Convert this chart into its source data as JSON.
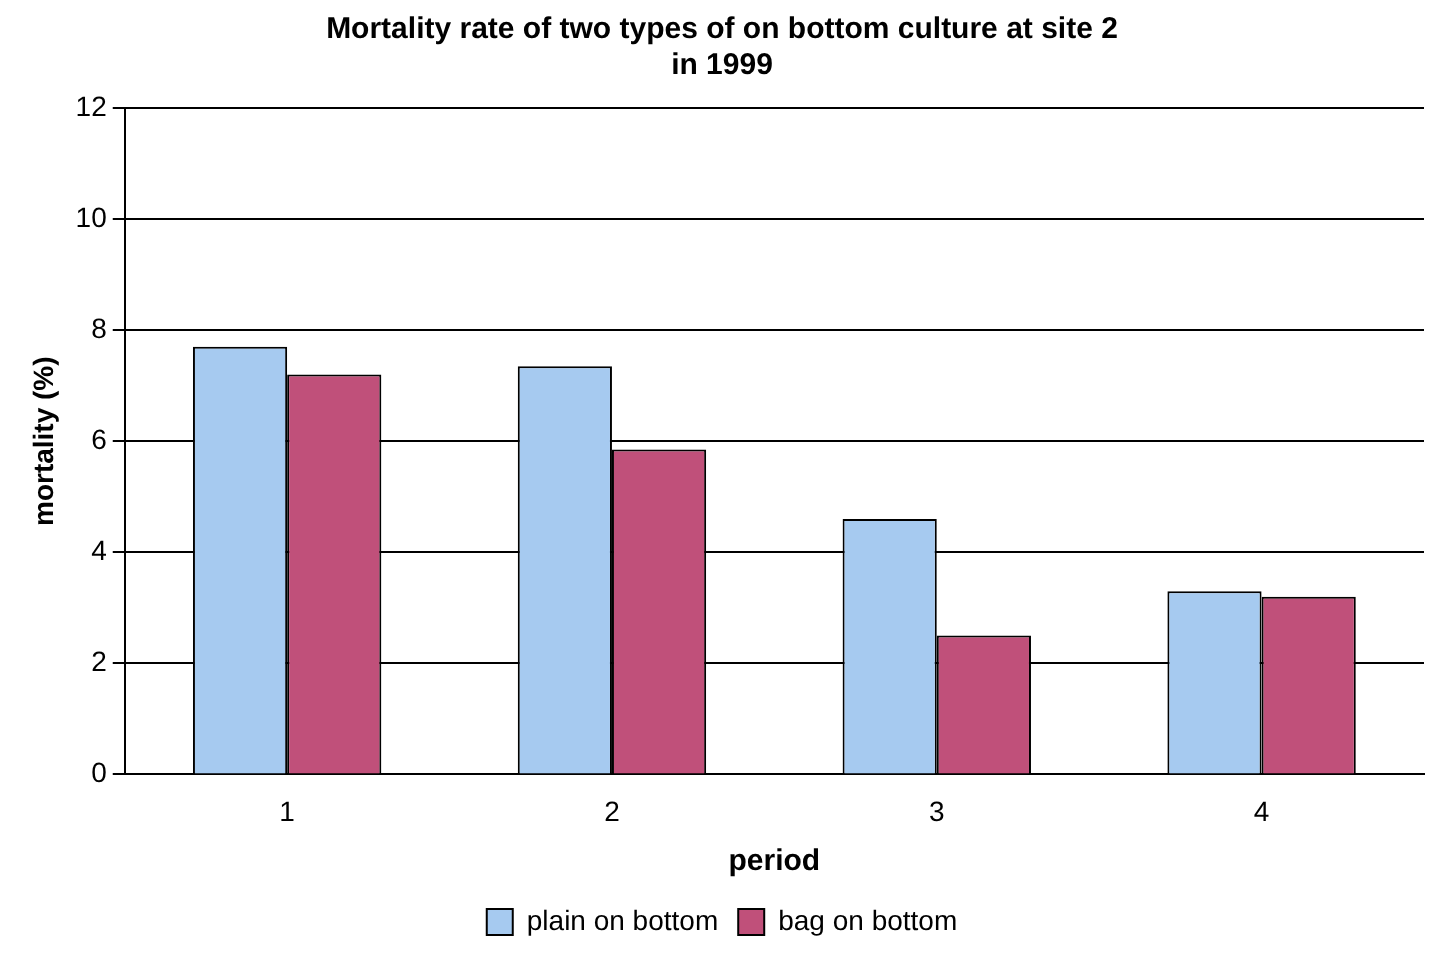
{
  "chart_data": {
    "type": "bar",
    "title": [
      "Mortality rate of two types of on bottom culture at site 2",
      "in 1999"
    ],
    "xlabel": "period",
    "ylabel": "mortality (%)",
    "categories": [
      "1",
      "2",
      "3",
      "4"
    ],
    "series": [
      {
        "name": "plain on bottom",
        "color": "#a6caf0",
        "values": [
          7.7,
          7.35,
          4.6,
          3.3
        ]
      },
      {
        "name": "bag on bottom",
        "color": "#c0507a",
        "values": [
          7.2,
          5.85,
          2.5,
          3.2
        ]
      }
    ],
    "ylim": [
      0,
      12
    ],
    "yticks": [
      0,
      2,
      4,
      6,
      8,
      10,
      12
    ],
    "grid": "y",
    "legend": "bottom"
  }
}
